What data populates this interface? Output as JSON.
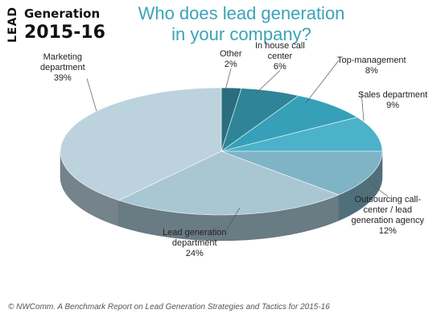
{
  "brand": {
    "lead": "LEAD",
    "generation": "Generation",
    "year": "2015-16"
  },
  "title_lines": [
    "Who does lead generation",
    "in your company?"
  ],
  "chart_data": {
    "type": "pie",
    "title": "Who does lead generation in your company?",
    "slices": [
      {
        "label_lines": [
          "Other"
        ],
        "value": 2,
        "display": "2%",
        "color": "#2a6e7d"
      },
      {
        "label_lines": [
          "In house call",
          "center"
        ],
        "value": 6,
        "display": "6%",
        "color": "#2f8498"
      },
      {
        "label_lines": [
          "Top-management"
        ],
        "value": 8,
        "display": "8%",
        "color": "#36a0b8"
      },
      {
        "label_lines": [
          "Sales department"
        ],
        "value": 9,
        "display": "9%",
        "color": "#4cb2c9"
      },
      {
        "label_lines": [
          "Outsourcing call-",
          "center / lead",
          "generation agency"
        ],
        "value": 12,
        "display": "12%",
        "color": "#7fb4c6"
      },
      {
        "label_lines": [
          "Lead generation",
          "department"
        ],
        "value": 24,
        "display": "24%",
        "color": "#a9c6d3"
      },
      {
        "label_lines": [
          "Marketing",
          "department"
        ],
        "value": 39,
        "display": "39%",
        "color": "#bcd3de"
      }
    ]
  },
  "footer": "© NWComm. A Benchmark Report on Lead Generation Strategies and Tactics for 2015-16"
}
